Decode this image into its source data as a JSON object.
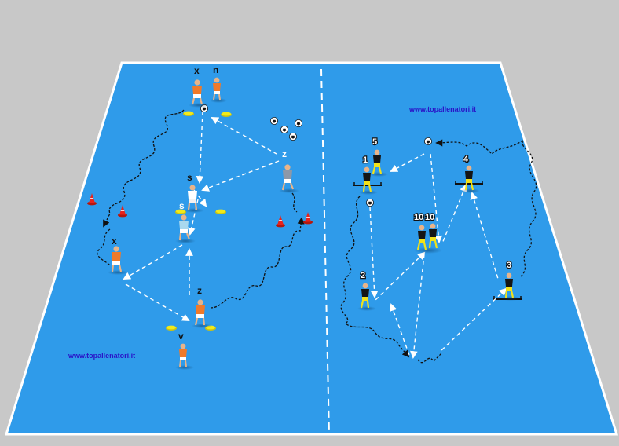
{
  "colors": {
    "background": "#c8c8c8",
    "pitch": "#2f9bea",
    "lines": "#ffffff",
    "watermark": "#2a14c8",
    "team_orange": "#f07a2a",
    "team_white": "#ffffff",
    "team_lightblue": "#a9d8ee",
    "team_grey": "#8c98a8",
    "team_black": "#151515",
    "shorts_yellow": "#f2e21a",
    "cone_red": "#e8231c",
    "marker_yellow": "#f2ea1a"
  },
  "watermarks": {
    "left": "www.topallenatori.it",
    "right": "www.topallenatori.it"
  },
  "left_drill": {
    "labels": {
      "x_top": "x",
      "n_top": "n",
      "s_upper": "s",
      "s_lower": "s",
      "z_right": "z",
      "x_left": "x",
      "z_bottom": "z",
      "v_bottom": "v"
    }
  },
  "right_drill": {
    "labels": {
      "p5": "5",
      "p1": "1",
      "p4": "4",
      "p10a": "10",
      "p10b": "10",
      "p2": "2",
      "p3": "3"
    }
  },
  "icons": [
    "football-icon",
    "cone-icon",
    "flat-marker-icon",
    "player-icon",
    "hurdle-icon"
  ]
}
